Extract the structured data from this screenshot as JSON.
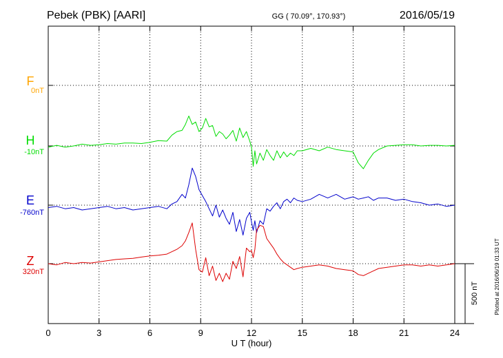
{
  "header": {
    "station": "Pebek (PBK)  [AARI]",
    "coords": "GG ( 70.09°, 170.93°)",
    "date": "2016/05/19"
  },
  "side_note": "Plotted at 2016/06/19 01:33 UT",
  "scale_bar_label": "500 nT",
  "chart_data": {
    "type": "line",
    "xlabel": "U T (hour)",
    "xlim": [
      0,
      24
    ],
    "xticks": [
      0,
      3,
      6,
      9,
      12,
      15,
      18,
      21,
      24
    ],
    "scale_bar_nT": 500,
    "grid": true,
    "series": [
      {
        "name": "F",
        "baseline_label": "0nT",
        "color": "#ffa500",
        "t": [],
        "dev": []
      },
      {
        "name": "H",
        "baseline_label": "-10nT",
        "color": "#00dd00",
        "t": [
          0,
          0.5,
          1,
          1.5,
          2,
          2.5,
          3,
          3.5,
          4,
          4.5,
          5,
          5.5,
          6,
          6.5,
          7,
          7.3,
          7.6,
          7.9,
          8.1,
          8.3,
          8.5,
          8.7,
          8.9,
          9.1,
          9.3,
          9.5,
          9.7,
          9.9,
          10.1,
          10.3,
          10.5,
          10.7,
          10.9,
          11.1,
          11.3,
          11.5,
          11.7,
          11.9,
          12.0,
          12.1,
          12.2,
          12.3,
          12.5,
          12.7,
          12.9,
          13.1,
          13.3,
          13.5,
          13.7,
          13.9,
          14.1,
          14.3,
          14.5,
          14.7,
          15,
          15.5,
          16,
          16.5,
          17,
          17.5,
          18,
          18.3,
          18.6,
          18.9,
          19.2,
          19.5,
          20,
          20.5,
          21,
          21.5,
          22,
          22.5,
          23,
          23.5,
          24
        ],
        "dev": [
          -10,
          5,
          -10,
          0,
          15,
          5,
          10,
          20,
          15,
          25,
          25,
          20,
          30,
          45,
          40,
          90,
          120,
          130,
          180,
          250,
          180,
          200,
          120,
          150,
          230,
          160,
          170,
          80,
          120,
          100,
          60,
          90,
          130,
          40,
          150,
          70,
          120,
          40,
          -10,
          -170,
          -40,
          -150,
          -60,
          -120,
          -30,
          -80,
          -120,
          -40,
          -100,
          -50,
          -90,
          -60,
          -80,
          -40,
          -40,
          -20,
          -40,
          -10,
          -30,
          -40,
          -50,
          -140,
          -190,
          -120,
          -60,
          -30,
          0,
          5,
          10,
          10,
          0,
          5,
          5,
          0,
          5
        ]
      },
      {
        "name": "E",
        "baseline_label": "-760nT",
        "color": "#0000cc",
        "t": [
          0,
          0.5,
          1,
          1.5,
          2,
          2.5,
          3,
          3.5,
          4,
          4.5,
          5,
          5.5,
          6,
          6.5,
          7,
          7.3,
          7.6,
          7.9,
          8.1,
          8.3,
          8.5,
          8.7,
          8.9,
          9.1,
          9.3,
          9.5,
          9.7,
          9.9,
          10.1,
          10.3,
          10.5,
          10.7,
          10.9,
          11.1,
          11.3,
          11.5,
          11.7,
          11.9,
          12.0,
          12.1,
          12.2,
          12.3,
          12.5,
          12.7,
          12.9,
          13.1,
          13.3,
          13.5,
          13.7,
          13.9,
          14.1,
          14.3,
          14.5,
          14.7,
          15,
          15.5,
          16,
          16.5,
          17,
          17.5,
          18,
          18.3,
          18.6,
          18.9,
          19.2,
          19.5,
          20,
          20.5,
          21,
          21.5,
          22,
          22.5,
          23,
          23.5,
          24
        ],
        "dev": [
          -20,
          -10,
          -30,
          -20,
          -40,
          -30,
          -20,
          -10,
          -30,
          -20,
          -40,
          -30,
          -20,
          -10,
          -30,
          10,
          30,
          90,
          60,
          170,
          310,
          240,
          130,
          80,
          30,
          -30,
          -90,
          0,
          -100,
          -40,
          -110,
          -160,
          -60,
          -220,
          -120,
          -250,
          -110,
          -60,
          -140,
          -210,
          -130,
          -230,
          -130,
          -160,
          -30,
          -50,
          -10,
          20,
          -30,
          30,
          50,
          20,
          60,
          40,
          30,
          50,
          90,
          60,
          90,
          50,
          70,
          50,
          60,
          70,
          40,
          60,
          60,
          40,
          50,
          30,
          20,
          0,
          10,
          -10,
          0
        ]
      },
      {
        "name": "Z",
        "baseline_label": "320nT",
        "color": "#dd0000",
        "t": [
          0,
          0.5,
          1,
          1.5,
          2,
          2.5,
          3,
          3.5,
          4,
          4.5,
          5,
          5.5,
          6,
          6.5,
          7,
          7.3,
          7.6,
          7.9,
          8.1,
          8.3,
          8.5,
          8.7,
          8.9,
          9.1,
          9.3,
          9.5,
          9.7,
          9.9,
          10.1,
          10.3,
          10.5,
          10.7,
          10.9,
          11.1,
          11.3,
          11.5,
          11.7,
          11.9,
          12.0,
          12.1,
          12.2,
          12.3,
          12.5,
          12.7,
          12.9,
          13.1,
          13.3,
          13.5,
          13.7,
          13.9,
          14.1,
          14.3,
          14.5,
          14.7,
          15,
          15.5,
          16,
          16.5,
          17,
          17.5,
          18,
          18.3,
          18.6,
          18.9,
          19.2,
          19.5,
          20,
          20.5,
          21,
          21.5,
          22,
          22.5,
          23,
          23.5,
          24
        ],
        "dev": [
          0,
          -10,
          10,
          0,
          10,
          5,
          15,
          25,
          35,
          40,
          45,
          55,
          65,
          70,
          80,
          100,
          120,
          150,
          190,
          260,
          340,
          120,
          -50,
          -70,
          50,
          -100,
          -20,
          -140,
          -80,
          -150,
          -80,
          -130,
          20,
          -40,
          60,
          -110,
          130,
          100,
          110,
          50,
          120,
          280,
          320,
          310,
          210,
          170,
          130,
          80,
          40,
          10,
          -10,
          -30,
          -50,
          -40,
          -30,
          -20,
          -10,
          -20,
          -40,
          -50,
          -60,
          -90,
          -100,
          -80,
          -60,
          -40,
          -30,
          -20,
          -10,
          -10,
          -20,
          -10,
          -20,
          -10,
          0
        ]
      }
    ]
  }
}
